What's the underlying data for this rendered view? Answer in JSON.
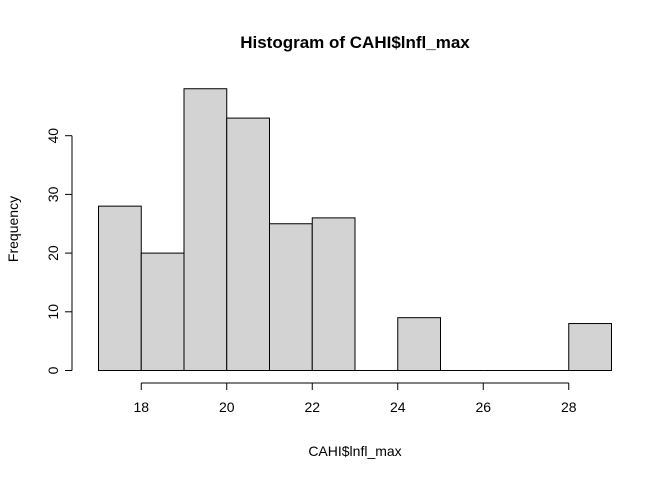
{
  "chart_data": {
    "type": "bar",
    "title": "Histogram of CAHI$lnfl_max",
    "xlabel": "CAHI$lnfl_max",
    "ylabel": "Frequency",
    "bins": [
      {
        "x0": 17,
        "x1": 18,
        "count": 28
      },
      {
        "x0": 18,
        "x1": 19,
        "count": 20
      },
      {
        "x0": 19,
        "x1": 20,
        "count": 48
      },
      {
        "x0": 20,
        "x1": 21,
        "count": 43
      },
      {
        "x0": 21,
        "x1": 22,
        "count": 25
      },
      {
        "x0": 22,
        "x1": 23,
        "count": 26
      },
      {
        "x0": 23,
        "x1": 24,
        "count": 0
      },
      {
        "x0": 24,
        "x1": 25,
        "count": 9
      },
      {
        "x0": 25,
        "x1": 26,
        "count": 0
      },
      {
        "x0": 26,
        "x1": 27,
        "count": 0
      },
      {
        "x0": 27,
        "x1": 28,
        "count": 0
      },
      {
        "x0": 28,
        "x1": 29,
        "count": 8
      }
    ],
    "xlim": [
      17,
      29
    ],
    "ylim": [
      0,
      48
    ],
    "x_ticks": [
      18,
      20,
      22,
      24,
      26,
      28
    ],
    "y_ticks": [
      0,
      10,
      20,
      30,
      40
    ],
    "grid": false,
    "legend": "none",
    "bar_color": "#d3d3d3"
  }
}
